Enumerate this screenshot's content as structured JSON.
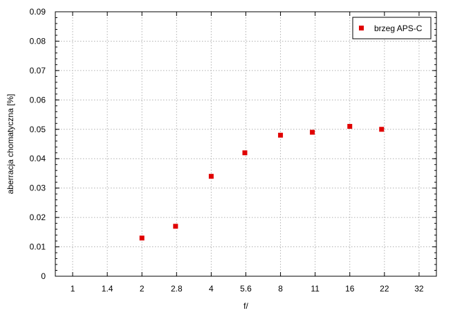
{
  "chart_data": {
    "type": "scatter",
    "xlabel": "f/",
    "ylabel": "aberracja chomatyczna [%]",
    "x_scale": "log2",
    "x_ticks": [
      "1",
      "1.4",
      "2",
      "2.8",
      "4",
      "5.6",
      "8",
      "11",
      "16",
      "22",
      "32"
    ],
    "xlim": [
      0.8409,
      38.06
    ],
    "ylim": [
      0,
      0.09
    ],
    "y_ticks": [
      "0",
      "0.01",
      "0.02",
      "0.03",
      "0.04",
      "0.05",
      "0.06",
      "0.07",
      "0.08",
      "0.09"
    ],
    "grid": true,
    "legend_position": "top-right",
    "series": [
      {
        "name": "brzeg APS-C",
        "color": "#e00000",
        "marker": "square",
        "x": [
          2,
          2.8,
          4,
          5.6,
          8,
          11,
          16,
          22
        ],
        "y": [
          0.013,
          0.017,
          0.034,
          0.042,
          0.048,
          0.049,
          0.051,
          0.05
        ]
      }
    ]
  }
}
